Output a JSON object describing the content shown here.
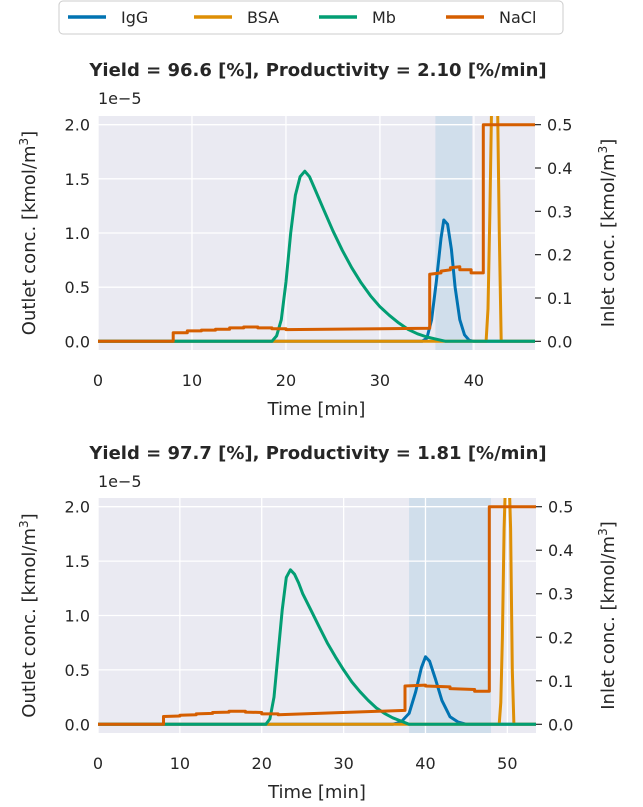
{
  "legend": {
    "items": [
      {
        "label": "IgG",
        "color": "#0173b2"
      },
      {
        "label": "BSA",
        "color": "#de8f05"
      },
      {
        "label": "Mb",
        "color": "#029e73"
      },
      {
        "label": "NaCl",
        "color": "#d55e00"
      }
    ]
  },
  "chart_data": [
    {
      "type": "line",
      "title": "Yield = 96.6 [%], Productivity = 2.10 [%/min]",
      "xlabel": "Time [min]",
      "ylabel_left": "Outlet conc. [kmol/m³]",
      "ylabel_right": "Inlet conc. [kmol/m³]",
      "left_offset_text": "1e−5",
      "xlim": [
        0,
        46.5
      ],
      "ylim_left": [
        -0.08,
        2.08
      ],
      "ylim_right": [
        -0.02,
        0.52
      ],
      "xticks": [
        0,
        10,
        20,
        30,
        40
      ],
      "yticks_left": [
        "0.0",
        "0.5",
        "1.0",
        "1.5",
        "2.0"
      ],
      "yticks_right": [
        "0.0",
        "0.1",
        "0.2",
        "0.3",
        "0.4",
        "0.5"
      ],
      "grid": true,
      "collection_window": [
        35.9,
        39.8
      ],
      "series": [
        {
          "name": "IgG",
          "axis": "left",
          "x": [
            0,
            34.5,
            35.0,
            35.5,
            36.0,
            36.5,
            36.8,
            37.2,
            37.6,
            38.0,
            38.5,
            39.0,
            39.5,
            40.0,
            46.5
          ],
          "y": [
            0,
            0,
            0.03,
            0.2,
            0.55,
            0.95,
            1.12,
            1.08,
            0.85,
            0.5,
            0.2,
            0.06,
            0.01,
            0,
            0
          ]
        },
        {
          "name": "BSA",
          "axis": "left",
          "x": [
            0,
            41.3,
            41.5,
            41.7,
            41.9,
            42.1,
            42.3,
            42.5,
            42.7,
            42.9,
            46.5
          ],
          "y": [
            0,
            0,
            0.3,
            1.2,
            2.3,
            2.3,
            2.3,
            2.3,
            1.0,
            0,
            0
          ]
        },
        {
          "name": "Mb",
          "axis": "left",
          "x": [
            0,
            18.5,
            19.0,
            19.5,
            20.0,
            20.5,
            21.0,
            21.5,
            22.0,
            22.5,
            23.0,
            24.0,
            25.0,
            26.0,
            27.0,
            28.0,
            29.0,
            30.0,
            31.0,
            32.0,
            33.0,
            34.0,
            35.0,
            36.0,
            37.0,
            46.5
          ],
          "y": [
            0,
            0,
            0.05,
            0.2,
            0.55,
            1.0,
            1.35,
            1.52,
            1.57,
            1.52,
            1.42,
            1.22,
            1.02,
            0.84,
            0.68,
            0.54,
            0.42,
            0.32,
            0.24,
            0.17,
            0.11,
            0.07,
            0.04,
            0.02,
            0,
            0
          ]
        },
        {
          "name": "NaCl",
          "axis": "right",
          "x": [
            0,
            8.0,
            8.0,
            9.5,
            9.5,
            11.0,
            11.0,
            12.5,
            12.5,
            14.0,
            14.0,
            15.5,
            15.5,
            17.0,
            17.0,
            18.5,
            18.5,
            20.0,
            20.0,
            35.3,
            35.3,
            36.5,
            36.5,
            37.5,
            37.5,
            38.5,
            38.5,
            39.7,
            39.7,
            41.0,
            41.0,
            46.5
          ],
          "y": [
            0,
            0,
            0.02,
            0.02,
            0.024,
            0.024,
            0.026,
            0.026,
            0.028,
            0.028,
            0.031,
            0.031,
            0.033,
            0.033,
            0.031,
            0.031,
            0.029,
            0.029,
            0.027,
            0.03,
            0.155,
            0.158,
            0.162,
            0.165,
            0.17,
            0.172,
            0.165,
            0.165,
            0.158,
            0.158,
            0.5,
            0.5
          ]
        }
      ]
    },
    {
      "type": "line",
      "title": "Yield = 97.7 [%], Productivity = 1.81 [%/min]",
      "xlabel": "Time [min]",
      "ylabel_left": "Outlet conc. [kmol/m³]",
      "ylabel_right": "Inlet conc. [kmol/m³]",
      "left_offset_text": "1e−5",
      "xlim": [
        0,
        53.5
      ],
      "ylim_left": [
        -0.08,
        2.08
      ],
      "ylim_right": [
        -0.02,
        0.52
      ],
      "xticks": [
        0,
        10,
        20,
        30,
        40,
        50
      ],
      "yticks_left": [
        "0.0",
        "0.5",
        "1.0",
        "1.5",
        "2.0"
      ],
      "yticks_right": [
        "0.0",
        "0.1",
        "0.2",
        "0.3",
        "0.4",
        "0.5"
      ],
      "grid": true,
      "collection_window": [
        38.0,
        48.0
      ],
      "series": [
        {
          "name": "IgG",
          "axis": "left",
          "x": [
            0,
            36.0,
            37.0,
            38.0,
            38.8,
            39.5,
            40.0,
            40.5,
            41.2,
            42.0,
            43.0,
            44.0,
            45.0,
            53.5
          ],
          "y": [
            0,
            0,
            0.02,
            0.1,
            0.3,
            0.52,
            0.62,
            0.58,
            0.42,
            0.22,
            0.07,
            0.02,
            0,
            0
          ]
        },
        {
          "name": "BSA",
          "axis": "left",
          "x": [
            0,
            49.0,
            49.2,
            49.4,
            49.6,
            49.8,
            50.0,
            50.2,
            50.4,
            50.6,
            50.8,
            53.5
          ],
          "y": [
            0,
            0,
            0.2,
            0.8,
            1.8,
            2.3,
            2.3,
            2.3,
            1.8,
            0.5,
            0,
            0
          ]
        },
        {
          "name": "Mb",
          "axis": "left",
          "x": [
            0,
            20.5,
            21.0,
            21.5,
            22.0,
            22.5,
            23.0,
            23.5,
            24.0,
            24.5,
            25.0,
            26.0,
            27.0,
            28.0,
            29.0,
            30.0,
            31.0,
            32.0,
            33.0,
            34.0,
            35.0,
            36.0,
            37.0,
            38.0,
            53.5
          ],
          "y": [
            0,
            0,
            0.05,
            0.25,
            0.65,
            1.05,
            1.35,
            1.42,
            1.38,
            1.3,
            1.2,
            1.05,
            0.9,
            0.75,
            0.62,
            0.5,
            0.39,
            0.3,
            0.22,
            0.15,
            0.1,
            0.06,
            0.03,
            0,
            0
          ]
        },
        {
          "name": "NaCl",
          "axis": "right",
          "x": [
            0,
            8.0,
            8.0,
            10.0,
            10.0,
            12.0,
            12.0,
            14.0,
            14.0,
            16.0,
            16.0,
            18.0,
            18.0,
            20.0,
            20.0,
            22.0,
            22.0,
            37.5,
            37.5,
            40.0,
            40.0,
            43.0,
            43.0,
            46.0,
            46.0,
            47.8,
            47.8,
            53.5
          ],
          "y": [
            0,
            0,
            0.018,
            0.019,
            0.021,
            0.022,
            0.024,
            0.025,
            0.027,
            0.028,
            0.03,
            0.03,
            0.028,
            0.027,
            0.024,
            0.024,
            0.022,
            0.032,
            0.088,
            0.09,
            0.088,
            0.086,
            0.082,
            0.08,
            0.076,
            0.076,
            0.5,
            0.5
          ]
        }
      ]
    }
  ]
}
